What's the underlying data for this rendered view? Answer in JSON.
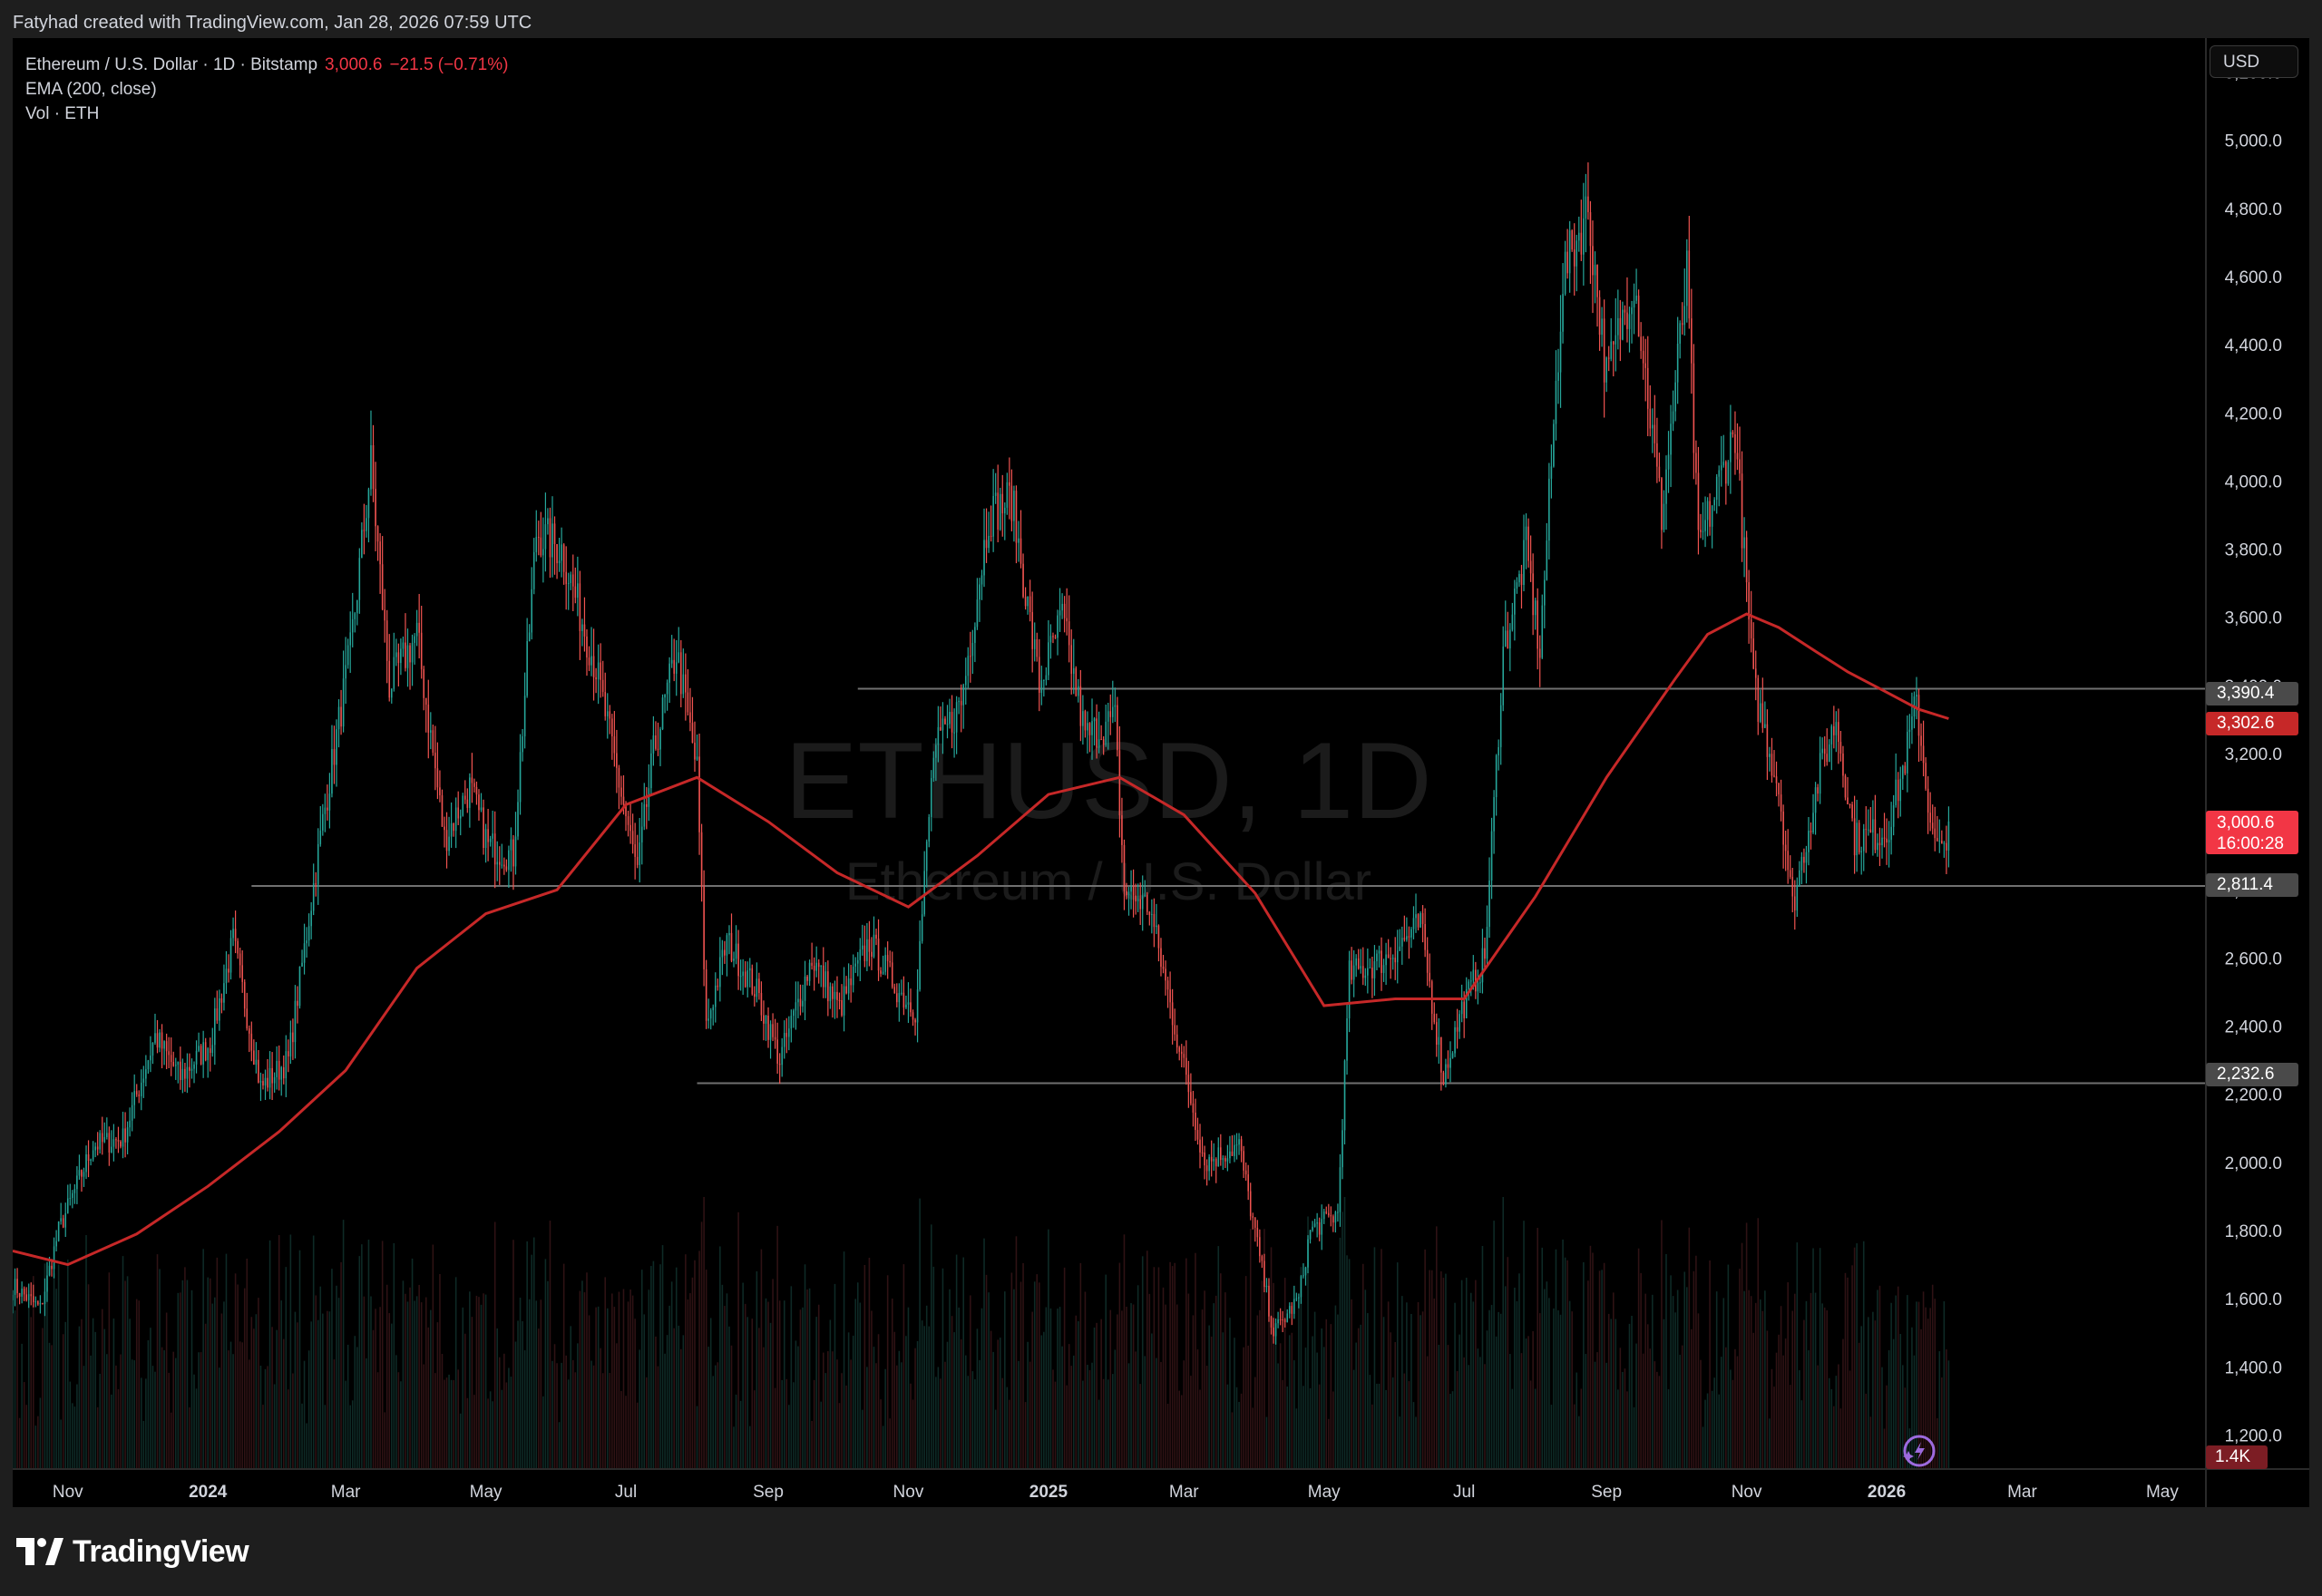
{
  "header": {
    "credit": "Fatyhad created with TradingView.com, Jan 28, 2026 07:59 UTC"
  },
  "legend": {
    "symbol": "Ethereum / U.S. Dollar · 1D · Bitstamp",
    "last": "3,000.6",
    "change": "−21.5 (−0.71%)",
    "ema": "EMA (200, close)",
    "volume": "Vol · ETH"
  },
  "watermark": {
    "ticker": "ETHUSD, 1D",
    "name": "Ethereum / U.S. Dollar"
  },
  "currency_button": "USD",
  "brand": "TradingView",
  "colors": {
    "up": "#26a69a",
    "down": "#ef5350",
    "ema": "#c62828",
    "level_line": "#707070",
    "last_price": "#f23645",
    "ema_label": "#c62828",
    "level_label": "#4a4a4a"
  },
  "labels": {
    "level_3390": "3,390.4",
    "ema_value": "3,302.6",
    "last_price": "3,000.6",
    "countdown": "16:00:28",
    "level_2811": "2,811.4",
    "level_2232": "2,232.6",
    "volume_value": "1.4K"
  },
  "chart_data": {
    "type": "candlestick",
    "symbol": "ETHUSD",
    "interval": "1D",
    "exchange": "Bitstamp",
    "y_axis": {
      "min": 1100,
      "max": 5300,
      "side": "right",
      "ticks": [
        1200,
        1400,
        1600,
        1800,
        2000,
        2200,
        2400,
        2600,
        2800,
        3000,
        3200,
        3400,
        3600,
        3800,
        4000,
        4200,
        4400,
        4600,
        4800,
        5000,
        5200
      ],
      "tick_labels": [
        "1,200.0",
        "1,400.0",
        "1,600.0",
        "1,800.0",
        "2,000.0",
        "2,200.0",
        "2,400.0",
        "2,600.0",
        "2,800.0",
        "3,000.0",
        "3,200.0",
        "3,400.0",
        "3,600.0",
        "3,800.0",
        "4,000.0",
        "4,200.0",
        "4,400.0",
        "4,600.0",
        "4,800.0",
        "5,000.0",
        "5,200.0"
      ]
    },
    "x_axis": {
      "start": "2023-10-08",
      "end": "2026-05-20",
      "ticks": [
        {
          "date": "2023-11-01",
          "label": "Nov",
          "bold": false
        },
        {
          "date": "2024-01-01",
          "label": "2024",
          "bold": true
        },
        {
          "date": "2024-03-01",
          "label": "Mar",
          "bold": false
        },
        {
          "date": "2024-05-01",
          "label": "May",
          "bold": false
        },
        {
          "date": "2024-07-01",
          "label": "Jul",
          "bold": false
        },
        {
          "date": "2024-09-01",
          "label": "Sep",
          "bold": false
        },
        {
          "date": "2024-11-01",
          "label": "Nov",
          "bold": false
        },
        {
          "date": "2025-01-01",
          "label": "2025",
          "bold": true
        },
        {
          "date": "2025-03-01",
          "label": "Mar",
          "bold": false
        },
        {
          "date": "2025-05-01",
          "label": "May",
          "bold": false
        },
        {
          "date": "2025-07-01",
          "label": "Jul",
          "bold": false
        },
        {
          "date": "2025-09-01",
          "label": "Sep",
          "bold": false
        },
        {
          "date": "2025-11-01",
          "label": "Nov",
          "bold": false
        },
        {
          "date": "2026-01-01",
          "label": "2026",
          "bold": true
        },
        {
          "date": "2026-03-01",
          "label": "Mar",
          "bold": false
        },
        {
          "date": "2026-05-01",
          "label": "May",
          "bold": false
        }
      ]
    },
    "price_path": [
      [
        "2023-10-08",
        1640
      ],
      [
        "2023-10-20",
        1570
      ],
      [
        "2023-10-28",
        1800
      ],
      [
        "2023-11-12",
        2050
      ],
      [
        "2023-11-25",
        2070
      ],
      [
        "2023-12-09",
        2370
      ],
      [
        "2023-12-20",
        2250
      ],
      [
        "2024-01-02",
        2350
      ],
      [
        "2024-01-12",
        2650
      ],
      [
        "2024-01-24",
        2220
      ],
      [
        "2024-02-05",
        2300
      ],
      [
        "2024-02-20",
        3000
      ],
      [
        "2024-03-03",
        3500
      ],
      [
        "2024-03-12",
        4050
      ],
      [
        "2024-03-20",
        3400
      ],
      [
        "2024-04-01",
        3550
      ],
      [
        "2024-04-13",
        2950
      ],
      [
        "2024-04-24",
        3100
      ],
      [
        "2024-05-02",
        2930
      ],
      [
        "2024-05-13",
        2900
      ],
      [
        "2024-05-23",
        3850
      ],
      [
        "2024-06-03",
        3800
      ],
      [
        "2024-06-18",
        3450
      ],
      [
        "2024-07-06",
        2850
      ],
      [
        "2024-07-13",
        3200
      ],
      [
        "2024-07-23",
        3500
      ],
      [
        "2024-08-01",
        3150
      ],
      [
        "2024-08-05",
        2400
      ],
      [
        "2024-08-14",
        2650
      ],
      [
        "2024-08-27",
        2500
      ],
      [
        "2024-09-06",
        2300
      ],
      [
        "2024-09-20",
        2600
      ],
      [
        "2024-10-02",
        2450
      ],
      [
        "2024-10-15",
        2650
      ],
      [
        "2024-10-28",
        2500
      ],
      [
        "2024-11-04",
        2450
      ],
      [
        "2024-11-12",
        3200
      ],
      [
        "2024-11-24",
        3350
      ],
      [
        "2024-12-06",
        3900
      ],
      [
        "2024-12-16",
        3950
      ],
      [
        "2024-12-28",
        3400
      ],
      [
        "2025-01-07",
        3600
      ],
      [
        "2025-01-17",
        3250
      ],
      [
        "2025-01-30",
        3300
      ],
      [
        "2025-02-03",
        2800
      ],
      [
        "2025-02-14",
        2750
      ],
      [
        "2025-02-25",
        2400
      ],
      [
        "2025-03-10",
        2000
      ],
      [
        "2025-03-25",
        2050
      ],
      [
        "2025-04-09",
        1500
      ],
      [
        "2025-04-20",
        1600
      ],
      [
        "2025-04-25",
        1800
      ],
      [
        "2025-05-07",
        1850
      ],
      [
        "2025-05-12",
        2550
      ],
      [
        "2025-05-28",
        2600
      ],
      [
        "2025-06-12",
        2700
      ],
      [
        "2025-06-22",
        2250
      ],
      [
        "2025-06-30",
        2450
      ],
      [
        "2025-07-10",
        2600
      ],
      [
        "2025-07-18",
        3500
      ],
      [
        "2025-07-28",
        3800
      ],
      [
        "2025-08-03",
        3500
      ],
      [
        "2025-08-13",
        4600
      ],
      [
        "2025-08-24",
        4800
      ],
      [
        "2025-09-01",
        4300
      ],
      [
        "2025-09-13",
        4600
      ],
      [
        "2025-09-25",
        3900
      ],
      [
        "2025-10-06",
        4600
      ],
      [
        "2025-10-11",
        3800
      ],
      [
        "2025-10-27",
        4150
      ],
      [
        "2025-11-04",
        3400
      ],
      [
        "2025-11-15",
        3100
      ],
      [
        "2025-11-21",
        2750
      ],
      [
        "2025-12-03",
        3150
      ],
      [
        "2025-12-10",
        3300
      ],
      [
        "2025-12-18",
        2950
      ],
      [
        "2026-01-01",
        2970
      ],
      [
        "2026-01-08",
        3150
      ],
      [
        "2026-01-14",
        3350
      ],
      [
        "2026-01-21",
        2950
      ],
      [
        "2026-01-25",
        2900
      ],
      [
        "2026-01-28",
        3000.6
      ]
    ],
    "ema_path": [
      [
        "2023-10-08",
        1740
      ],
      [
        "2023-11-01",
        1700
      ],
      [
        "2023-12-01",
        1790
      ],
      [
        "2024-01-01",
        1930
      ],
      [
        "2024-02-01",
        2090
      ],
      [
        "2024-03-01",
        2270
      ],
      [
        "2024-04-01",
        2570
      ],
      [
        "2024-05-01",
        2730
      ],
      [
        "2024-06-01",
        2800
      ],
      [
        "2024-07-01",
        3050
      ],
      [
        "2024-08-01",
        3130
      ],
      [
        "2024-09-01",
        3000
      ],
      [
        "2024-10-01",
        2850
      ],
      [
        "2024-11-01",
        2750
      ],
      [
        "2024-12-01",
        2900
      ],
      [
        "2025-01-01",
        3080
      ],
      [
        "2025-02-01",
        3130
      ],
      [
        "2025-03-01",
        3020
      ],
      [
        "2025-04-01",
        2790
      ],
      [
        "2025-05-01",
        2460
      ],
      [
        "2025-06-01",
        2480
      ],
      [
        "2025-07-01",
        2480
      ],
      [
        "2025-08-01",
        2780
      ],
      [
        "2025-09-01",
        3130
      ],
      [
        "2025-10-01",
        3420
      ],
      [
        "2025-10-15",
        3550
      ],
      [
        "2025-11-01",
        3610
      ],
      [
        "2025-11-15",
        3570
      ],
      [
        "2025-12-01",
        3500
      ],
      [
        "2025-12-15",
        3440
      ],
      [
        "2026-01-01",
        3380
      ],
      [
        "2026-01-15",
        3330
      ],
      [
        "2026-01-28",
        3302.6
      ]
    ],
    "horizontal_levels": [
      {
        "value": 3390.4,
        "start": "2024-10-10"
      },
      {
        "value": 2811.4,
        "start": "2024-01-20"
      },
      {
        "value": 2232.6,
        "start": "2024-08-01"
      }
    ],
    "volume": {
      "last": "1.4K"
    }
  }
}
